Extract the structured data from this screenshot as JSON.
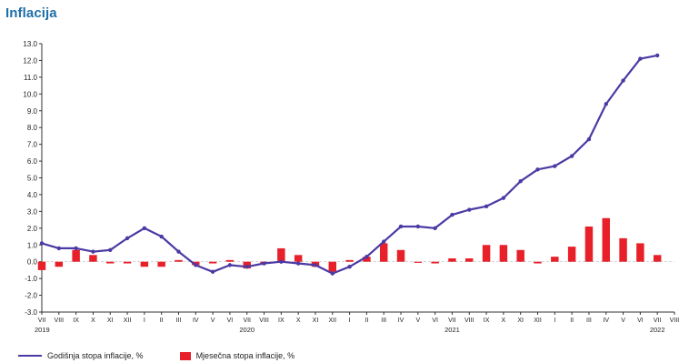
{
  "page": {
    "title": "Inflacija"
  },
  "colors": {
    "line": "#4b3aa3",
    "bar": "#e8202a",
    "title": "#1f6fa8"
  },
  "chart_data": {
    "type": "bar+line",
    "title": "Inflacija",
    "ylim": [
      -3.0,
      13.0
    ],
    "yticks": [
      "13.0",
      "12.0",
      "11.0",
      "10.0",
      "9.0",
      "8.0",
      "7.0",
      "6.0",
      "5.0",
      "4.0",
      "3.0",
      "2.0",
      "1.0",
      "0.0",
      "-1.0",
      "-2.0",
      "-3.0"
    ],
    "categories": [
      "VII",
      "VIII",
      "IX",
      "X",
      "XI",
      "XII",
      "I",
      "II",
      "III",
      "IV",
      "V",
      "VI",
      "VII",
      "VIII",
      "IX",
      "X",
      "XI",
      "XII",
      "I",
      "II",
      "III",
      "IV",
      "V",
      "VI",
      "VII",
      "VIII",
      "IX",
      "X",
      "XI",
      "XII",
      "I",
      "II",
      "III",
      "IV",
      "V",
      "VI",
      "VII",
      "VIII"
    ],
    "years": [
      {
        "label": "2019",
        "index": 0
      },
      {
        "label": "2020",
        "index": 12
      },
      {
        "label": "2021",
        "index": 24
      },
      {
        "label": "2022",
        "index": 36
      }
    ],
    "series": [
      {
        "name": "Godišnja stopa inflacije, %",
        "kind": "line",
        "values": [
          1.1,
          0.8,
          0.8,
          0.6,
          0.7,
          1.4,
          2.0,
          1.5,
          0.6,
          -0.2,
          -0.6,
          -0.2,
          -0.3,
          -0.1,
          0.0,
          -0.1,
          -0.2,
          -0.7,
          -0.3,
          0.3,
          1.2,
          2.1,
          2.1,
          2.0,
          2.8,
          3.1,
          3.3,
          3.8,
          4.8,
          5.5,
          5.7,
          6.3,
          7.3,
          9.4,
          10.8,
          12.1,
          12.3,
          null
        ]
      },
      {
        "name": "Mjesečna stopa inflacije, %",
        "kind": "bar",
        "values": [
          -0.5,
          -0.3,
          0.7,
          0.4,
          -0.1,
          -0.1,
          -0.3,
          -0.3,
          0.1,
          -0.2,
          -0.1,
          0.1,
          -0.4,
          -0.1,
          0.8,
          0.4,
          -0.3,
          -0.6,
          0.1,
          0.3,
          1.1,
          0.7,
          0.0,
          -0.1,
          0.2,
          0.2,
          1.0,
          1.0,
          0.7,
          -0.1,
          0.3,
          0.9,
          2.1,
          2.6,
          1.4,
          1.1,
          0.4,
          null
        ]
      }
    ],
    "legend": {
      "position": "bottom"
    },
    "grid": false
  }
}
